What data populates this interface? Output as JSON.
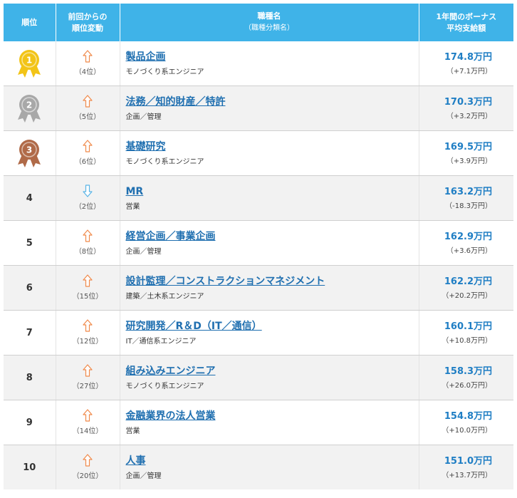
{
  "header": {
    "rank": "順位",
    "change_line1": "前回からの",
    "change_line2": "順位変動",
    "job_line1": "職種名",
    "job_line2": "（職種分類名）",
    "bonus_line1": "1年間のボーナス",
    "bonus_line2": "平均支給額"
  },
  "colors": {
    "header": "#3fb3e8",
    "up_arrow": "#f08a4b",
    "down_arrow": "#5ab4e6",
    "gold": "#f2c417",
    "silver": "#a8a8a8",
    "bronze": "#b06a48"
  },
  "rows": [
    {
      "rank": "1",
      "medal": "gold-medal-icon",
      "direction": "up",
      "prev": "（4位）",
      "job": "製品企画",
      "category": "モノづくり系エンジニア",
      "amount": "174.8万円",
      "diff": "（+7.1万円）"
    },
    {
      "rank": "2",
      "medal": "silver-medal-icon",
      "direction": "up",
      "prev": "（5位）",
      "job": "法務／知的財産／特許",
      "category": "企画／管理",
      "amount": "170.3万円",
      "diff": "（+3.2万円）"
    },
    {
      "rank": "3",
      "medal": "bronze-medal-icon",
      "direction": "up",
      "prev": "（6位）",
      "job": "基礎研究",
      "category": "モノづくり系エンジニア",
      "amount": "169.5万円",
      "diff": "（+3.9万円）"
    },
    {
      "rank": "4",
      "direction": "down",
      "prev": "（2位）",
      "job": "MR",
      "category": "営業",
      "amount": "163.2万円",
      "diff": "（-18.3万円）"
    },
    {
      "rank": "5",
      "direction": "up",
      "prev": "（8位）",
      "job": "経営企画／事業企画",
      "category": "企画／管理",
      "amount": "162.9万円",
      "diff": "（+3.6万円）"
    },
    {
      "rank": "6",
      "direction": "up",
      "prev": "（15位）",
      "job": "設計監理／コンストラクションマネジメント",
      "category": "建築／土木系エンジニア",
      "amount": "162.2万円",
      "diff": "（+20.2万円）"
    },
    {
      "rank": "7",
      "direction": "up",
      "prev": "（12位）",
      "job": "研究開発／R＆D（IT／通信）",
      "category": "IT／通信系エンジニア",
      "amount": "160.1万円",
      "diff": "（+10.8万円）"
    },
    {
      "rank": "8",
      "direction": "up",
      "prev": "（27位）",
      "job": "組み込みエンジニア",
      "category": "モノづくり系エンジニア",
      "amount": "158.3万円",
      "diff": "（+26.0万円）"
    },
    {
      "rank": "9",
      "direction": "up",
      "prev": "（14位）",
      "job": "金融業界の法人営業",
      "category": "営業",
      "amount": "154.8万円",
      "diff": "（+10.0万円）"
    },
    {
      "rank": "10",
      "direction": "up",
      "prev": "（20位）",
      "job": "人事",
      "category": "企画／管理",
      "amount": "151.0万円",
      "diff": "（+13.7万円）"
    }
  ]
}
